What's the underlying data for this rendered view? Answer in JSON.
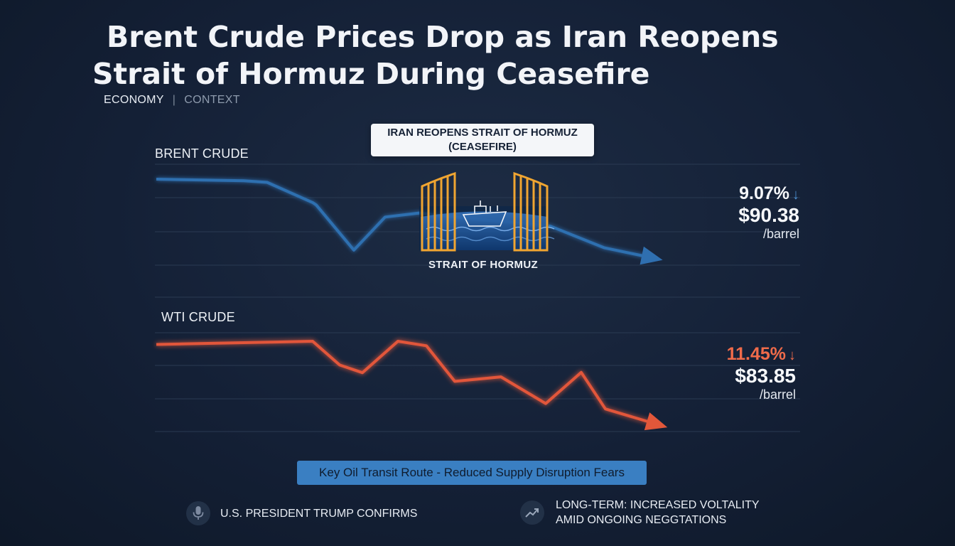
{
  "title": {
    "line1": "Brent Crude Prices Drop as Iran Reopens",
    "line2": "Strait of Hormuz During Ceasefire"
  },
  "tags": {
    "primary": "ECONOMY",
    "separator": "|",
    "secondary": "CONTEXT"
  },
  "callout": {
    "line1": "IRAN REOPENS STRAIT OF HORMUZ",
    "line2": "(CEASEFIRE)"
  },
  "strait_label": "STRAIT OF HORMUZ",
  "brent": {
    "change": "9.07%",
    "arrow": "↓",
    "price": "$90.38",
    "unit": "/barrel"
  },
  "wti": {
    "change": "11.45%",
    "arrow": "↓",
    "price": "$83.85",
    "unit": "/barrel"
  },
  "banner": "Key Oil Transit Route - Reduced Supply Disruption Fears",
  "footer": {
    "left": "U.S. PRESIDENT TRUMP CONFIRMS",
    "right_line1": "LONG-TERM: INCREASED VOLTALITY",
    "right_line2": "AMID ONGOING NEGGTATIONS"
  },
  "colors": {
    "brent": "#2f6fb0",
    "wti": "#e2573a",
    "gate": "#f0a531",
    "banner": "#3a7fc2"
  },
  "icons": {
    "left": "microphone-icon",
    "right": "trend-up-icon",
    "center": "gate-ship-icon"
  },
  "chart_data": [
    {
      "type": "line",
      "series": [
        {
          "name": "BRENT CRUDE",
          "values": [
            100,
            99.6,
            99.2,
            94.2,
            93.6,
            82.4,
            90.6,
            91.6,
            90.6,
            88.3,
            83.0,
            80.6
          ]
        }
      ],
      "grid": true,
      "legend": "none"
    },
    {
      "type": "line",
      "series": [
        {
          "name": "WTI CRUDE",
          "values": [
            100,
            100.5,
            101,
            93.6,
            91.2,
            101,
            99.6,
            88.5,
            89.9,
            81.6,
            91.3,
            79.9,
            75.3
          ]
        }
      ],
      "grid": true,
      "legend": "none"
    }
  ]
}
